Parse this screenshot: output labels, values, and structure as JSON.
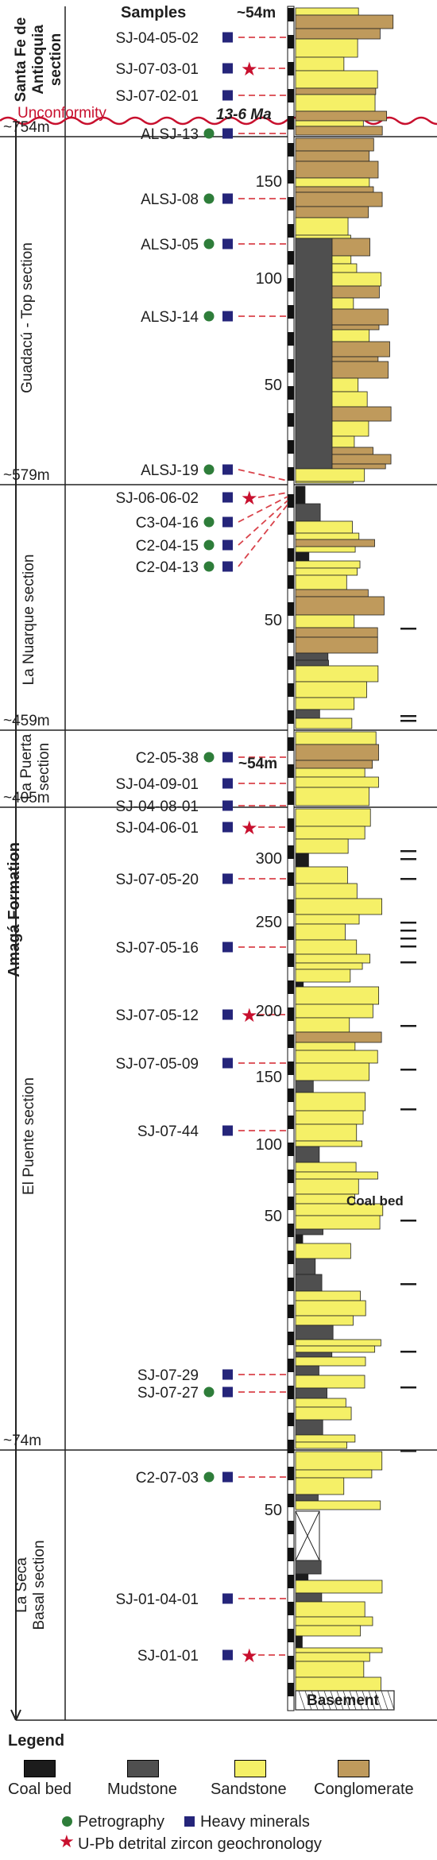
{
  "header": {
    "samples_label": "Samples",
    "top_level": "~54m"
  },
  "formation": "Amagá Formation",
  "sections": [
    {
      "label": "Santa Fe de\nAntioquia\nsection",
      "bold": true
    },
    {
      "label": "Guadacú - Top section",
      "bold": false
    },
    {
      "label": "La  Nuarque section",
      "bold": false
    },
    {
      "label": "La Puerta\nsection",
      "bold": false
    },
    {
      "label": "El Puente section",
      "bold": false
    },
    {
      "label": "La Seca\nBasal section",
      "bold": false
    }
  ],
  "boundaries": [
    {
      "label": "~754m"
    },
    {
      "label": "~579m"
    },
    {
      "label": "~459m"
    },
    {
      "label": "~405m"
    },
    {
      "label": "~74m"
    }
  ],
  "unconformity": {
    "label": "Unconformity",
    "age": "13-6 Ma"
  },
  "samples": [
    {
      "name": "SJ-04-05-02",
      "petro": false,
      "heavy": true,
      "zircon": false
    },
    {
      "name": "SJ-07-03-01",
      "petro": false,
      "heavy": true,
      "zircon": true
    },
    {
      "name": "SJ-07-02-01",
      "petro": false,
      "heavy": true,
      "zircon": false
    },
    {
      "name": "ALSJ-13",
      "petro": true,
      "heavy": true,
      "zircon": false
    },
    {
      "name": "ALSJ-08",
      "petro": true,
      "heavy": true,
      "zircon": false
    },
    {
      "name": "ALSJ-05",
      "petro": true,
      "heavy": true,
      "zircon": false
    },
    {
      "name": "ALSJ-14",
      "petro": true,
      "heavy": true,
      "zircon": false
    },
    {
      "name": "ALSJ-19",
      "petro": true,
      "heavy": true,
      "zircon": false
    },
    {
      "name": "SJ-06-06-02",
      "petro": false,
      "heavy": true,
      "zircon": true
    },
    {
      "name": "C3-04-16",
      "petro": true,
      "heavy": true,
      "zircon": false
    },
    {
      "name": "C2-04-15",
      "petro": true,
      "heavy": true,
      "zircon": false
    },
    {
      "name": "C2-04-13",
      "petro": true,
      "heavy": true,
      "zircon": false
    },
    {
      "name": "C2-05-38",
      "petro": true,
      "heavy": true,
      "zircon": false
    },
    {
      "name": "SJ-04-09-01",
      "petro": false,
      "heavy": true,
      "zircon": false
    },
    {
      "name": "SJ-04-08-01",
      "petro": false,
      "heavy": true,
      "zircon": false
    },
    {
      "name": "SJ-04-06-01",
      "petro": false,
      "heavy": true,
      "zircon": true
    },
    {
      "name": "SJ-07-05-20",
      "petro": false,
      "heavy": true,
      "zircon": false
    },
    {
      "name": "SJ-07-05-16",
      "petro": false,
      "heavy": true,
      "zircon": false
    },
    {
      "name": "SJ-07-05-12",
      "petro": false,
      "heavy": true,
      "zircon": true
    },
    {
      "name": "SJ-07-05-09",
      "petro": false,
      "heavy": true,
      "zircon": false
    },
    {
      "name": "SJ-07-44",
      "petro": false,
      "heavy": true,
      "zircon": false
    },
    {
      "name": "SJ-07-29",
      "petro": false,
      "heavy": true,
      "zircon": false
    },
    {
      "name": "SJ-07-27",
      "petro": true,
      "heavy": true,
      "zircon": false
    },
    {
      "name": "C2-07-03",
      "petro": true,
      "heavy": true,
      "zircon": false
    },
    {
      "name": "SJ-01-04-01",
      "petro": false,
      "heavy": true,
      "zircon": false
    },
    {
      "name": "SJ-01-01",
      "petro": false,
      "heavy": true,
      "zircon": true
    }
  ],
  "scale_labels": [
    "150",
    "100",
    "50",
    "50",
    "~54m",
    "300",
    "250",
    "200",
    "150",
    "100",
    "50",
    "50"
  ],
  "annotations": {
    "coal_bed": "Coal bed",
    "basement": "Basement"
  },
  "legend": {
    "title": "Legend",
    "lithology": [
      {
        "label": "Coal bed",
        "color": "#1c1c1c"
      },
      {
        "label": "Mudstone",
        "color": "#4f4f4f"
      },
      {
        "label": "Sandstone",
        "color": "#f5f067"
      },
      {
        "label": "Conglomerate",
        "color": "#bf9a5c"
      }
    ],
    "petrography": "Petrography",
    "heavy_minerals": "Heavy minerals",
    "zircon": "U-Pb detrital zircon geochronology"
  },
  "colors": {
    "sandstone": "#f5f067",
    "conglomerate": "#bf9a5c",
    "mudstone": "#4f4f4f",
    "coal": "#1c1c1c",
    "petrography": "#2e7d3a",
    "heavy_minerals": "#25257a",
    "zircon": "#c8102e",
    "unconformity": "#c8102e",
    "sample_line": "#d9434b"
  }
}
